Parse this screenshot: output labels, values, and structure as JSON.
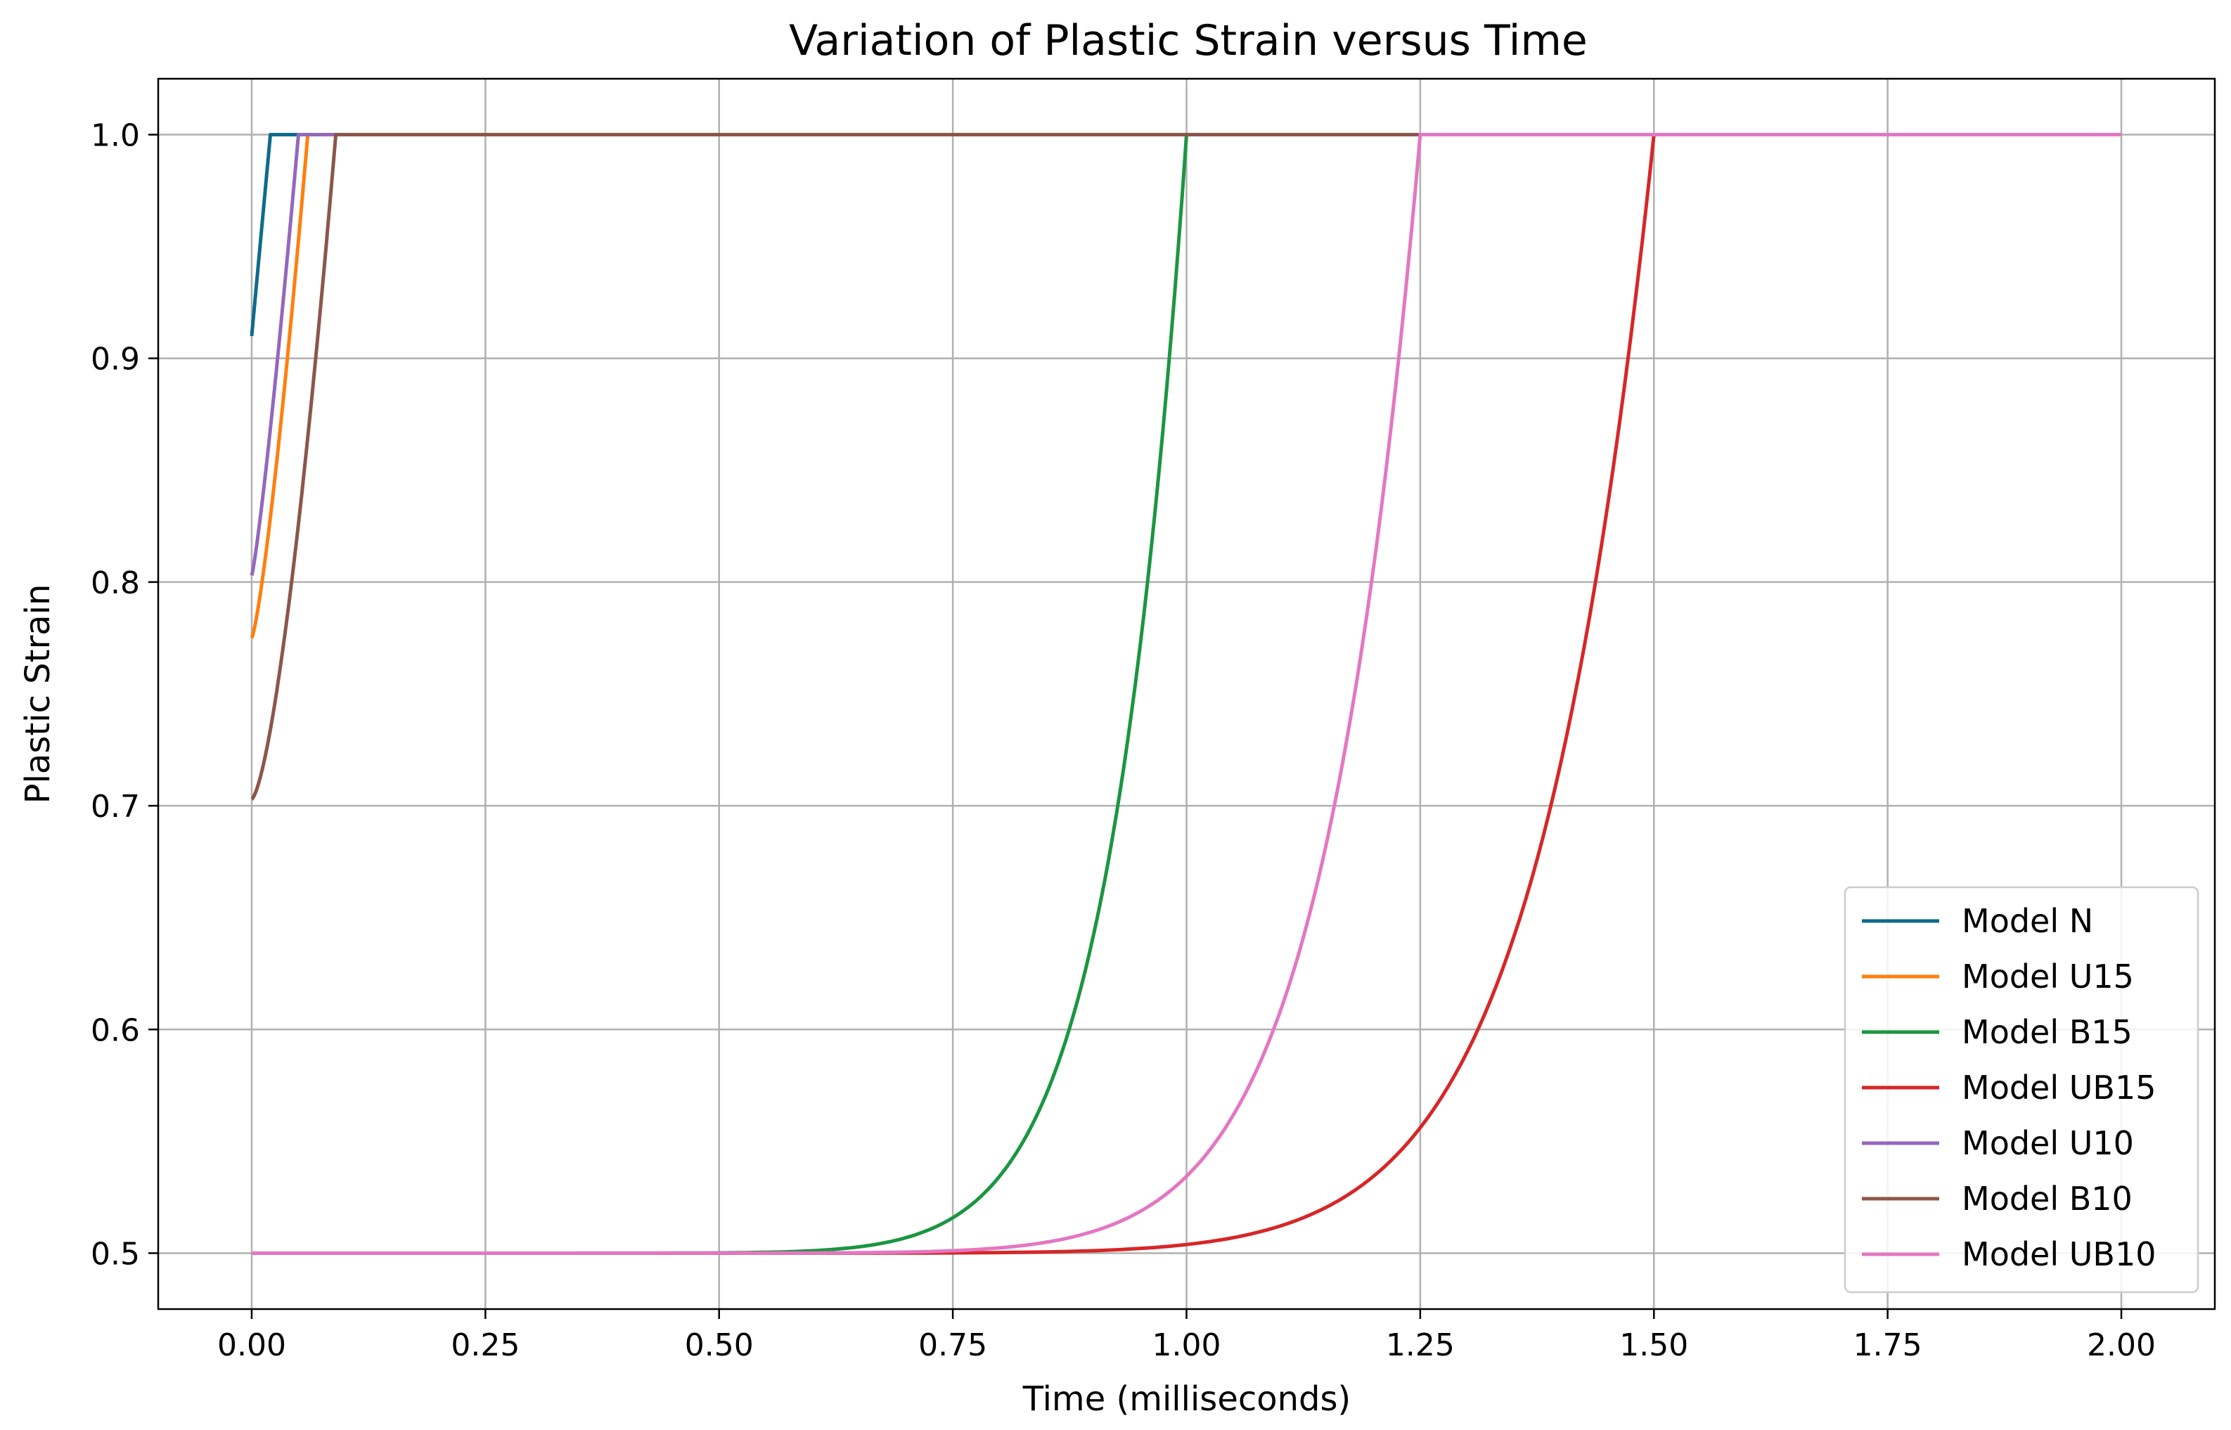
{
  "chart_data": {
    "type": "line",
    "title": "Variation of Plastic Strain versus Time",
    "xlabel": "Time (milliseconds)",
    "ylabel": "Plastic Strain",
    "xlim": [
      -0.1,
      2.1
    ],
    "ylim": [
      0.475,
      1.025
    ],
    "xticks": [
      0.0,
      0.25,
      0.5,
      0.75,
      1.0,
      1.25,
      1.5,
      1.75,
      2.0
    ],
    "xtick_labels": [
      "0.00",
      "0.25",
      "0.50",
      "0.75",
      "1.00",
      "1.25",
      "1.50",
      "1.75",
      "2.00"
    ],
    "yticks": [
      0.5,
      0.6,
      0.7,
      0.8,
      0.9,
      1.0
    ],
    "ytick_labels": [
      "0.5",
      "0.6",
      "0.7",
      "0.8",
      "0.9",
      "1.0"
    ],
    "grid": true,
    "legend_position": "lower-right",
    "series": [
      {
        "name": "Model N",
        "color": "#1f77b4",
        "color_display": "#0e6b8c",
        "start_y": 0.91,
        "ramp_end_x": 0.02,
        "curve_exponent": 1.0,
        "end_x": 0.05
      },
      {
        "name": "Model U15",
        "color": "#ff7f0e",
        "start_y": 0.775,
        "ramp_end_x": 0.06,
        "curve_exponent": 1.3,
        "end_x": 0.07
      },
      {
        "name": "Model B15",
        "color": "#2ca02c",
        "color_display": "#1a9641",
        "start_y": 0.5,
        "ramp_end_x": 1.0,
        "curve_exponent": 12,
        "end_x": 1.5
      },
      {
        "name": "Model UB15",
        "color": "#d62728",
        "start_y": 0.5,
        "ramp_end_x": 1.5,
        "curve_exponent": 12,
        "end_x": 2.0
      },
      {
        "name": "Model U10",
        "color": "#9467bd",
        "start_y": 0.803,
        "ramp_end_x": 0.05,
        "curve_exponent": 1.2,
        "end_x": 0.09
      },
      {
        "name": "Model B10",
        "color": "#8c564b",
        "start_y": 0.703,
        "ramp_end_x": 0.09,
        "curve_exponent": 1.5,
        "end_x": 1.25
      },
      {
        "name": "Model UB10",
        "color": "#e377c2",
        "start_y": 0.5,
        "ramp_end_x": 1.25,
        "curve_exponent": 12,
        "end_x": 2.0
      }
    ]
  }
}
